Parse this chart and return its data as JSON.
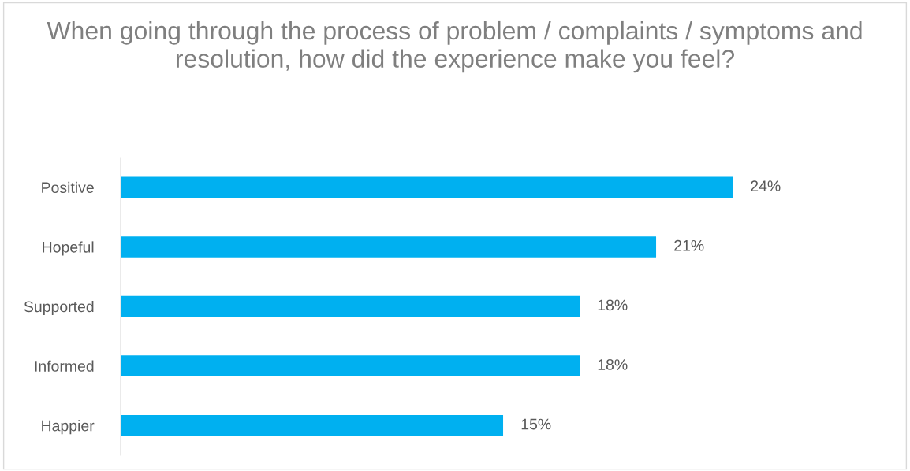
{
  "chart_data": {
    "type": "bar",
    "orientation": "horizontal",
    "title": "When going through the process of problem / complaints / symptoms and resolution, how did the experience make you feel?",
    "categories": [
      "Positive",
      "Hopeful",
      "Supported",
      "Informed",
      "Happier"
    ],
    "values": [
      24,
      21,
      18,
      18,
      15
    ],
    "value_labels": [
      "24%",
      "21%",
      "18%",
      "18%",
      "15%"
    ],
    "color": "#00b0f0",
    "grid": false,
    "legend": false
  }
}
